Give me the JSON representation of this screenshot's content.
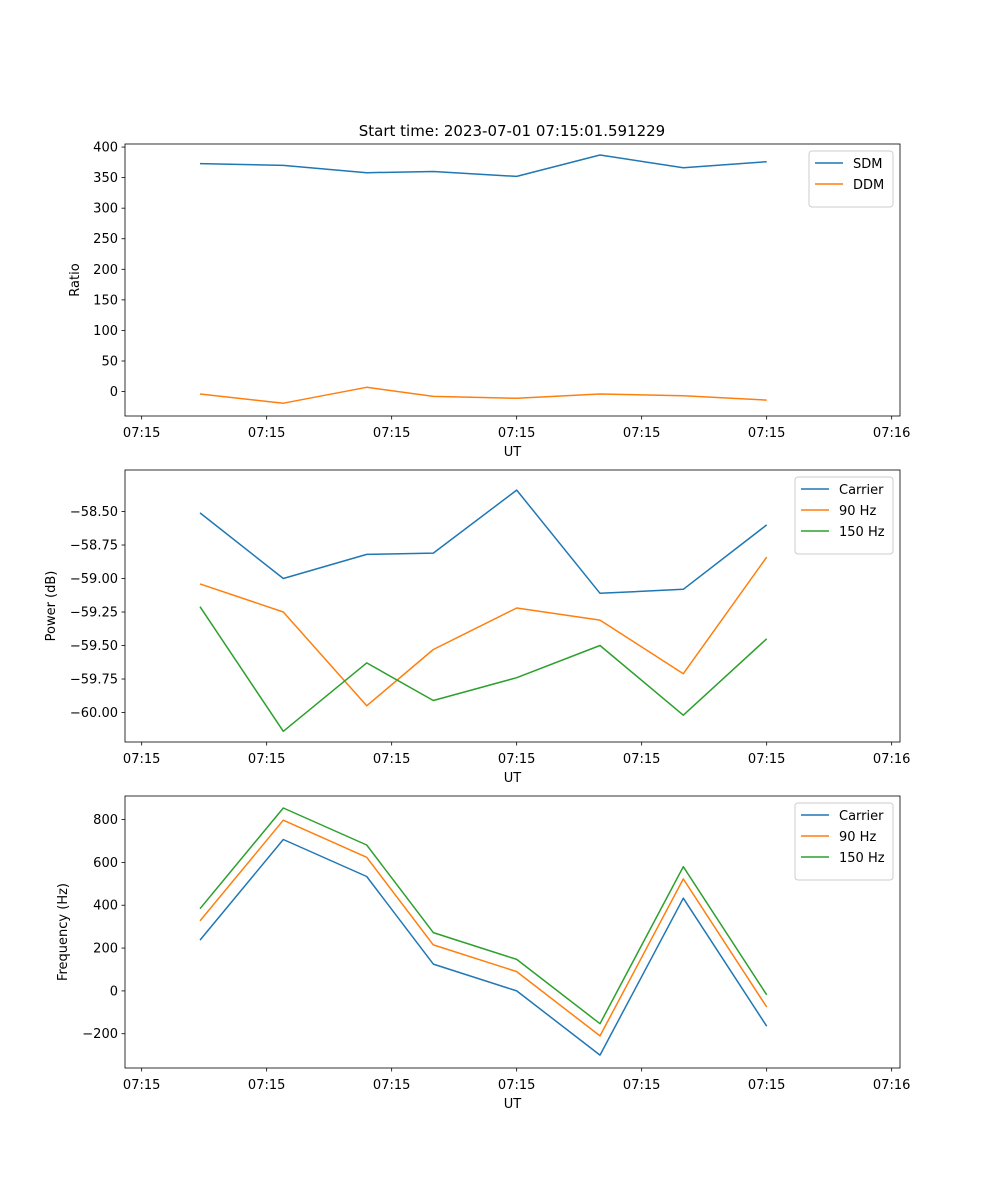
{
  "figure": {
    "title": "Start time: 2023-07-01 07:15:01.591229"
  },
  "colors": {
    "blue": "#1f77b4",
    "orange": "#ff7f0e",
    "green": "#2ca02c",
    "axis": "#000000",
    "legend_border": "#cccccc"
  },
  "chart_data": [
    {
      "type": "line",
      "title": "Start time: 2023-07-01 07:15:01.591229",
      "xlabel": "UT",
      "ylabel": "Ratio",
      "xlim": [
        0,
        9.3
      ],
      "ylim": [
        -40,
        405
      ],
      "yticks": [
        0,
        50,
        100,
        150,
        200,
        250,
        300,
        350,
        400
      ],
      "ytick_labels": [
        "0",
        "50",
        "100",
        "150",
        "200",
        "250",
        "300",
        "350",
        "400"
      ],
      "xticks": [
        0.2,
        1.7,
        3.2,
        4.7,
        6.2,
        7.7,
        9.2
      ],
      "xtick_labels": [
        "07:15",
        "07:15",
        "07:15",
        "07:15",
        "07:15",
        "07:15",
        "07:16"
      ],
      "x": [
        0.9,
        1.9,
        2.9,
        3.7,
        4.7,
        5.7,
        6.7,
        7.7
      ],
      "series": [
        {
          "name": "SDM",
          "color": "#1f77b4",
          "values": [
            373,
            370,
            358,
            360,
            352,
            387,
            366,
            376
          ]
        },
        {
          "name": "DDM",
          "color": "#ff7f0e",
          "values": [
            -4,
            -19,
            7,
            -8,
            -11,
            -4,
            -7,
            -14
          ]
        }
      ],
      "legend": "top-right"
    },
    {
      "type": "line",
      "title": "",
      "xlabel": "UT",
      "ylabel": "Power (dB)",
      "xlim": [
        0,
        9.3
      ],
      "ylim": [
        -60.22,
        -58.19
      ],
      "yticks": [
        -60.0,
        -59.75,
        -59.5,
        -59.25,
        -59.0,
        -58.75,
        -58.5
      ],
      "ytick_labels": [
        "−60.00",
        "−59.75",
        "−59.50",
        "−59.25",
        "−59.00",
        "−58.75",
        "−58.50"
      ],
      "xticks": [
        0.2,
        1.7,
        3.2,
        4.7,
        6.2,
        7.7,
        9.2
      ],
      "xtick_labels": [
        "07:15",
        "07:15",
        "07:15",
        "07:15",
        "07:15",
        "07:15",
        "07:16"
      ],
      "x": [
        0.9,
        1.9,
        2.9,
        3.7,
        4.7,
        5.7,
        6.7,
        7.7
      ],
      "series": [
        {
          "name": "Carrier",
          "color": "#1f77b4",
          "values": [
            -58.51,
            -59.0,
            -58.82,
            -58.81,
            -58.34,
            -59.11,
            -59.08,
            -58.6
          ]
        },
        {
          "name": "90 Hz",
          "color": "#ff7f0e",
          "values": [
            -59.04,
            -59.25,
            -59.95,
            -59.53,
            -59.22,
            -59.31,
            -59.71,
            -58.84
          ]
        },
        {
          "name": "150 Hz",
          "color": "#2ca02c",
          "values": [
            -59.21,
            -60.14,
            -59.63,
            -59.91,
            -59.74,
            -59.5,
            -60.02,
            -59.45
          ]
        }
      ],
      "legend": "top-right"
    },
    {
      "type": "line",
      "title": "",
      "xlabel": "UT",
      "ylabel": "Frequency (Hz)",
      "xlim": [
        0,
        9.3
      ],
      "ylim": [
        -360,
        910
      ],
      "yticks": [
        -200,
        0,
        200,
        400,
        600,
        800
      ],
      "ytick_labels": [
        "−200",
        "0",
        "200",
        "400",
        "600",
        "800"
      ],
      "xticks": [
        0.2,
        1.7,
        3.2,
        4.7,
        6.2,
        7.7,
        9.2
      ],
      "xtick_labels": [
        "07:15",
        "07:15",
        "07:15",
        "07:15",
        "07:15",
        "07:15",
        "07:16"
      ],
      "x": [
        0.9,
        1.9,
        2.9,
        3.7,
        4.7,
        5.7,
        6.7,
        7.7
      ],
      "series": [
        {
          "name": "Carrier",
          "color": "#1f77b4",
          "values": [
            237,
            707,
            534,
            125,
            0,
            -300,
            433,
            -165
          ]
        },
        {
          "name": "90 Hz",
          "color": "#ff7f0e",
          "values": [
            327,
            797,
            624,
            215,
            90,
            -210,
            523,
            -75
          ]
        },
        {
          "name": "150 Hz",
          "color": "#2ca02c",
          "values": [
            384,
            854,
            681,
            272,
            147,
            -153,
            580,
            -18
          ]
        }
      ],
      "legend": "top-right"
    }
  ]
}
